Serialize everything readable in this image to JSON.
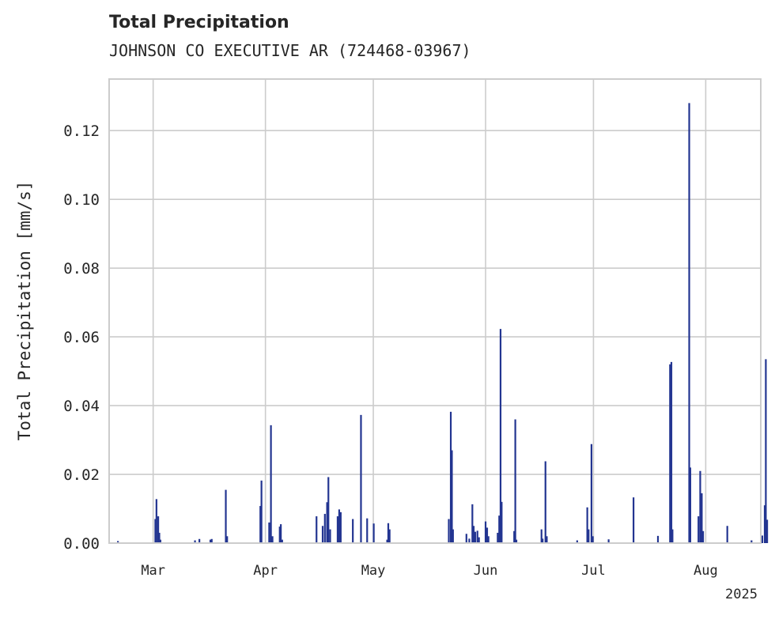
{
  "chart_data": {
    "type": "bar",
    "title": "Total Precipitation",
    "subtitle": "JOHNSON CO EXECUTIVE AR (724468-03967)",
    "xlabel": "",
    "ylabel": "Total Precipitation [mm/s]",
    "year_label": "2025",
    "xlim": [
      -13,
      283
    ],
    "ylim": [
      0,
      0.135
    ],
    "yticks": [
      0.0,
      0.02,
      0.04,
      0.06,
      0.08,
      0.1,
      0.12
    ],
    "ytick_labels": [
      "0.00",
      "0.02",
      "0.04",
      "0.06",
      "0.08",
      "0.10",
      "0.12"
    ],
    "xticks": [
      {
        "day": 7,
        "label": "Mar"
      },
      {
        "day": 58,
        "label": "Apr"
      },
      {
        "day": 107,
        "label": "May"
      },
      {
        "day": 158,
        "label": "Jun"
      },
      {
        "day": 207,
        "label": "Jul"
      },
      {
        "day": 258,
        "label": "Aug"
      }
    ],
    "series": [
      {
        "name": "Total Precipitation",
        "color": "#233591",
        "points": [
          [
            -9,
            0.0006
          ],
          [
            8,
            0.007
          ],
          [
            8.5,
            0.0128
          ],
          [
            9.3,
            0.0078
          ],
          [
            9.8,
            0.003
          ],
          [
            10.3,
            0.001
          ],
          [
            26,
            0.0008
          ],
          [
            28,
            0.0012
          ],
          [
            33,
            0.001
          ],
          [
            33.6,
            0.0012
          ],
          [
            40,
            0.0155
          ],
          [
            40.6,
            0.002
          ],
          [
            55.7,
            0.0108
          ],
          [
            56.2,
            0.0182
          ],
          [
            59.7,
            0.006
          ],
          [
            60.5,
            0.0343
          ],
          [
            61.2,
            0.002
          ],
          [
            64.5,
            0.0048
          ],
          [
            65,
            0.0055
          ],
          [
            65.6,
            0.001
          ],
          [
            81.2,
            0.0078
          ],
          [
            84,
            0.005
          ],
          [
            85,
            0.0085
          ],
          [
            86,
            0.0119
          ],
          [
            86.6,
            0.0192
          ],
          [
            87.4,
            0.004
          ],
          [
            90.8,
            0.0078
          ],
          [
            91.5,
            0.0098
          ],
          [
            92.2,
            0.009
          ],
          [
            97.7,
            0.007
          ],
          [
            101.4,
            0.0373
          ],
          [
            104.2,
            0.0072
          ],
          [
            107.2,
            0.0057
          ],
          [
            113.3,
            0.001
          ],
          [
            113.8,
            0.0058
          ],
          [
            114.4,
            0.004
          ],
          [
            141.3,
            0.007
          ],
          [
            142.2,
            0.0382
          ],
          [
            142.7,
            0.027
          ],
          [
            143.2,
            0.004
          ],
          [
            149.3,
            0.0027
          ],
          [
            150.6,
            0.0013
          ],
          [
            152,
            0.0113
          ],
          [
            152.6,
            0.005
          ],
          [
            153.3,
            0.0033
          ],
          [
            154.3,
            0.0036
          ],
          [
            155,
            0.0017
          ],
          [
            158,
            0.0063
          ],
          [
            158.7,
            0.0045
          ],
          [
            159.3,
            0.002
          ],
          [
            163.5,
            0.003
          ],
          [
            164.2,
            0.008
          ],
          [
            164.8,
            0.0623
          ],
          [
            165.3,
            0.012
          ],
          [
            171,
            0.0035
          ],
          [
            171.5,
            0.036
          ],
          [
            172,
            0.001
          ],
          [
            183.4,
            0.004
          ],
          [
            183.9,
            0.0013
          ],
          [
            185.2,
            0.0238
          ],
          [
            185.8,
            0.002
          ],
          [
            199.6,
            0.0008
          ],
          [
            204.2,
            0.0104
          ],
          [
            204.8,
            0.004
          ],
          [
            206.1,
            0.0288
          ],
          [
            206.7,
            0.002
          ],
          [
            213.9,
            0.0011
          ],
          [
            225.2,
            0.0133
          ],
          [
            236.3,
            0.0021
          ],
          [
            241.8,
            0.052
          ],
          [
            242.4,
            0.0527
          ],
          [
            242.9,
            0.004
          ],
          [
            250.5,
            0.128
          ],
          [
            251,
            0.022
          ],
          [
            254.7,
            0.0078
          ],
          [
            255.5,
            0.021
          ],
          [
            256.2,
            0.0145
          ],
          [
            256.8,
            0.0035
          ],
          [
            267.8,
            0.005
          ],
          [
            278.8,
            0.0008
          ],
          [
            283.7,
            0.0022
          ],
          [
            284.8,
            0.011
          ],
          [
            285.3,
            0.0535
          ],
          [
            285.9,
            0.0068
          ]
        ]
      }
    ],
    "grid": true,
    "legend": "none"
  }
}
